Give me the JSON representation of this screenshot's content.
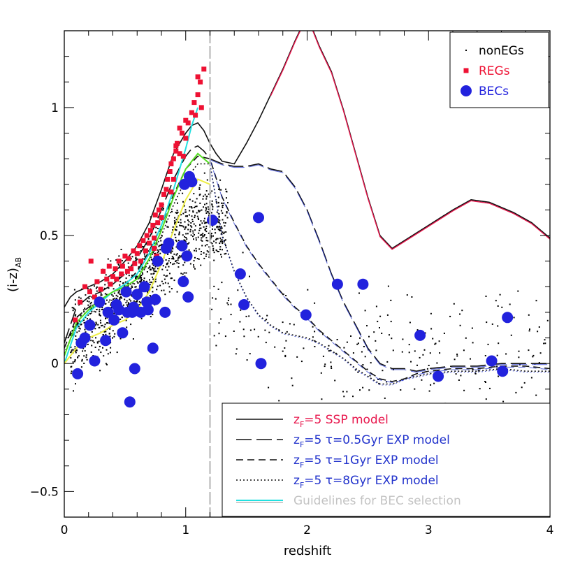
{
  "chart_data": {
    "type": "scatter",
    "title": "",
    "xlabel": "redshift",
    "ylabel": "(i-z)",
    "ylabel_subscript": "AB",
    "xlim": [
      0,
      4
    ],
    "ylim": [
      -0.6,
      1.3
    ],
    "x_ticks": [
      0,
      1,
      2,
      3,
      4
    ],
    "y_ticks": [
      -0.5,
      0,
      0.5,
      1
    ],
    "y_tick_labels": [
      "−0.5",
      "0",
      "0.5",
      "1"
    ],
    "bec_cut_redshift": 1.2,
    "colors": {
      "nonEGs": "#000000",
      "REGs": "#ee1133",
      "BECs": "#2222dd",
      "ssp_red": "#e8174d",
      "blue_text": "#2233cc",
      "cyan_line": "#22e0e0",
      "green_line": "#55dd22",
      "yellow_line": "#eeee44",
      "grey_line": "#bbbbbb"
    },
    "scatter_legend": [
      {
        "label": "nonEGs",
        "marker": "dot",
        "color": "#000000"
      },
      {
        "label": "REGs",
        "marker": "square",
        "color": "#ee1133"
      },
      {
        "label": "BECs",
        "marker": "circle",
        "color": "#2222dd"
      }
    ],
    "model_legend": [
      {
        "z": "z",
        "sub": "F",
        "rest": "=5",
        "tau": "",
        "text": " SSP model",
        "text_color": "#e8174d",
        "style": "solid"
      },
      {
        "z": "z",
        "sub": "F",
        "rest": "=5 ",
        "tau": "τ",
        "text": "=0.5Gyr EXP model",
        "text_color": "#2233cc",
        "style": "longdash"
      },
      {
        "z": "z",
        "sub": "F",
        "rest": "=5 ",
        "tau": "τ",
        "text": "=1Gyr EXP model",
        "text_color": "#2233cc",
        "style": "dash"
      },
      {
        "z": "z",
        "sub": "F",
        "rest": "=5 ",
        "tau": "τ",
        "text": "=8Gyr EXP model",
        "text_color": "#2233cc",
        "style": "dotted"
      },
      {
        "z": "",
        "sub": "",
        "rest": "",
        "tau": "",
        "text": "Guidelines for BEC selection",
        "text_color": "#b0b0b0",
        "style": "guide"
      }
    ],
    "series": [
      {
        "name": "SSP model",
        "style": "solid",
        "x": [
          0,
          0.05,
          0.1,
          0.15,
          0.2,
          0.3,
          0.4,
          0.5,
          0.6,
          0.7,
          0.8,
          0.9,
          1.0,
          1.05,
          1.1,
          1.15,
          1.2,
          1.25,
          1.3,
          1.4,
          1.5,
          1.6,
          1.7,
          1.8,
          1.9,
          1.95,
          2.0,
          2.05,
          2.1,
          2.2,
          2.3,
          2.4,
          2.5,
          2.6,
          2.7,
          2.8,
          3.0,
          3.2,
          3.35,
          3.5,
          3.7,
          3.85,
          4.0
        ],
        "y": [
          0.22,
          0.26,
          0.28,
          0.29,
          0.3,
          0.32,
          0.35,
          0.4,
          0.46,
          0.55,
          0.68,
          0.82,
          0.9,
          0.93,
          0.94,
          0.91,
          0.86,
          0.82,
          0.79,
          0.78,
          0.86,
          0.95,
          1.05,
          1.15,
          1.26,
          1.31,
          1.34,
          1.3,
          1.24,
          1.14,
          0.99,
          0.82,
          0.65,
          0.5,
          0.45,
          0.48,
          0.54,
          0.6,
          0.64,
          0.63,
          0.59,
          0.55,
          0.49
        ]
      },
      {
        "name": "tau=0.5Gyr EXP",
        "style": "longdash",
        "x": [
          0,
          0.1,
          0.2,
          0.3,
          0.4,
          0.5,
          0.6,
          0.7,
          0.8,
          0.9,
          1.0,
          1.05,
          1.1,
          1.15,
          1.2,
          1.3,
          1.4,
          1.5,
          1.6,
          1.7,
          1.8,
          1.9,
          2.0,
          2.1,
          2.2,
          2.3,
          2.4,
          2.5,
          2.6,
          2.7,
          2.8,
          2.9,
          3.0,
          3.2,
          3.4,
          3.6,
          3.8,
          4.0
        ],
        "y": [
          0.08,
          0.22,
          0.26,
          0.28,
          0.31,
          0.35,
          0.41,
          0.49,
          0.6,
          0.72,
          0.81,
          0.84,
          0.85,
          0.83,
          0.8,
          0.78,
          0.77,
          0.77,
          0.78,
          0.76,
          0.75,
          0.69,
          0.6,
          0.48,
          0.35,
          0.24,
          0.15,
          0.06,
          0.0,
          -0.02,
          -0.02,
          -0.03,
          -0.02,
          -0.01,
          -0.01,
          0.0,
          0.0,
          0.0
        ]
      },
      {
        "name": "tau=1Gyr EXP",
        "style": "dash",
        "x": [
          0,
          0.1,
          0.2,
          0.3,
          0.4,
          0.5,
          0.6,
          0.7,
          0.8,
          0.9,
          1.0,
          1.1,
          1.2,
          1.3,
          1.4,
          1.5,
          1.6,
          1.7,
          1.8,
          1.9,
          2.0,
          2.1,
          2.2,
          2.3,
          2.4,
          2.5,
          2.6,
          2.7,
          2.8,
          2.9,
          3.0,
          3.2,
          3.4,
          3.6,
          3.8,
          4.0
        ],
        "y": [
          0.06,
          0.18,
          0.22,
          0.25,
          0.28,
          0.31,
          0.36,
          0.44,
          0.54,
          0.66,
          0.76,
          0.81,
          0.8,
          0.65,
          0.55,
          0.46,
          0.39,
          0.33,
          0.27,
          0.22,
          0.18,
          0.13,
          0.09,
          0.05,
          0.01,
          -0.03,
          -0.06,
          -0.07,
          -0.06,
          -0.04,
          -0.03,
          -0.02,
          -0.02,
          -0.01,
          -0.01,
          -0.02
        ]
      },
      {
        "name": "tau=8Gyr EXP",
        "style": "dotted",
        "x": [
          0,
          0.1,
          0.2,
          0.3,
          0.4,
          0.5,
          0.6,
          0.7,
          0.8,
          0.9,
          1.0,
          1.1,
          1.2,
          1.3,
          1.4,
          1.5,
          1.6,
          1.7,
          1.8,
          1.9,
          2.0,
          2.1,
          2.2,
          2.3,
          2.4,
          2.5,
          2.6,
          2.7,
          2.8,
          2.9,
          3.0,
          3.2,
          3.4,
          3.6,
          3.8,
          4.0
        ],
        "y": [
          0.04,
          0.15,
          0.19,
          0.22,
          0.25,
          0.28,
          0.32,
          0.4,
          0.5,
          0.62,
          0.72,
          0.78,
          0.78,
          0.5,
          0.36,
          0.26,
          0.19,
          0.15,
          0.12,
          0.11,
          0.1,
          0.08,
          0.05,
          0.02,
          -0.02,
          -0.05,
          -0.08,
          -0.08,
          -0.06,
          -0.05,
          -0.04,
          -0.03,
          -0.03,
          -0.02,
          -0.03,
          -0.03
        ]
      },
      {
        "name": "Guideline cyan",
        "style": "guide",
        "color": "#22e0e0",
        "x": [
          0,
          0.1,
          0.2,
          0.3,
          0.4,
          0.5,
          0.6,
          0.7,
          0.8,
          0.9,
          1.0,
          1.05,
          1.1
        ],
        "y": [
          0.0,
          0.14,
          0.2,
          0.24,
          0.28,
          0.31,
          0.35,
          0.43,
          0.54,
          0.68,
          0.84,
          0.93,
          1.0
        ]
      },
      {
        "name": "Guideline green",
        "style": "guide",
        "color": "#55dd22",
        "x": [
          0,
          0.1,
          0.2,
          0.3,
          0.4,
          0.5,
          0.6,
          0.7,
          0.8,
          0.9,
          1.0,
          1.1,
          1.2
        ],
        "y": [
          0.03,
          0.16,
          0.21,
          0.25,
          0.28,
          0.3,
          0.33,
          0.41,
          0.52,
          0.65,
          0.76,
          0.82,
          0.78
        ]
      },
      {
        "name": "Guideline yellow",
        "style": "guide",
        "color": "#eeee44",
        "x": [
          0,
          0.1,
          0.2,
          0.3,
          0.4,
          0.5,
          0.6,
          0.7,
          0.8,
          0.9,
          1.0,
          1.1,
          1.2
        ],
        "y": [
          0.0,
          0.06,
          0.1,
          0.12,
          0.15,
          0.17,
          0.21,
          0.28,
          0.39,
          0.52,
          0.64,
          0.72,
          0.7
        ]
      }
    ],
    "BECs": {
      "x": [
        0.11,
        0.14,
        0.17,
        0.21,
        0.25,
        0.29,
        0.34,
        0.36,
        0.41,
        0.43,
        0.45,
        0.48,
        0.51,
        0.52,
        0.54,
        0.56,
        0.57,
        0.58,
        0.6,
        0.63,
        0.66,
        0.68,
        0.69,
        0.73,
        0.75,
        0.77,
        0.83,
        0.84,
        0.86,
        0.97,
        0.98,
        0.99,
        1.01,
        1.02,
        1.03,
        1.05,
        1.22,
        1.45,
        1.48,
        1.6,
        1.62,
        1.99,
        2.25,
        2.46,
        2.93,
        3.08,
        3.52,
        3.61,
        3.65
      ],
      "y": [
        -0.04,
        0.08,
        0.1,
        0.15,
        0.01,
        0.24,
        0.09,
        0.2,
        0.17,
        0.23,
        0.21,
        0.12,
        0.28,
        0.2,
        -0.15,
        0.2,
        0.22,
        -0.02,
        0.27,
        0.2,
        0.3,
        0.24,
        0.21,
        0.06,
        0.25,
        0.4,
        0.2,
        0.45,
        0.47,
        0.46,
        0.32,
        0.7,
        0.42,
        0.26,
        0.73,
        0.71,
        0.56,
        0.35,
        0.23,
        0.57,
        0.0,
        0.19,
        0.31,
        0.31,
        0.11,
        -0.05,
        0.01,
        -0.03,
        0.18
      ]
    },
    "REGs": {
      "x": [
        0.09,
        0.13,
        0.17,
        0.21,
        0.22,
        0.25,
        0.27,
        0.3,
        0.32,
        0.35,
        0.37,
        0.38,
        0.4,
        0.42,
        0.43,
        0.45,
        0.47,
        0.48,
        0.5,
        0.52,
        0.53,
        0.55,
        0.57,
        0.58,
        0.6,
        0.62,
        0.63,
        0.65,
        0.67,
        0.68,
        0.7,
        0.71,
        0.73,
        0.74,
        0.75,
        0.77,
        0.78,
        0.8,
        0.8,
        0.82,
        0.84,
        0.85,
        0.87,
        0.88,
        0.9,
        0.92,
        0.93,
        0.95,
        0.97,
        1.0,
        1.02,
        1.05,
        1.07,
        1.1,
        1.12,
        1.13,
        1.15,
        0.74,
        0.76,
        0.88,
        0.9,
        0.92,
        0.95,
        0.98,
        1.0,
        1.08,
        1.1
      ],
      "y": [
        0.17,
        0.24,
        0.3,
        0.28,
        0.4,
        0.26,
        0.32,
        0.29,
        0.36,
        0.33,
        0.38,
        0.31,
        0.34,
        0.37,
        0.33,
        0.4,
        0.35,
        0.38,
        0.42,
        0.36,
        0.41,
        0.37,
        0.44,
        0.39,
        0.43,
        0.46,
        0.4,
        0.48,
        0.44,
        0.5,
        0.47,
        0.52,
        0.54,
        0.49,
        0.58,
        0.55,
        0.6,
        0.57,
        0.62,
        0.66,
        0.68,
        0.72,
        0.75,
        0.78,
        0.8,
        0.83,
        0.86,
        0.82,
        0.9,
        0.88,
        0.94,
        0.98,
        1.02,
        1.05,
        1.1,
        1.0,
        1.15,
        0.45,
        0.42,
        0.67,
        0.72,
        0.85,
        0.92,
        0.81,
        0.95,
        0.97,
        1.12
      ]
    },
    "nonEGs_count": 1300
  }
}
